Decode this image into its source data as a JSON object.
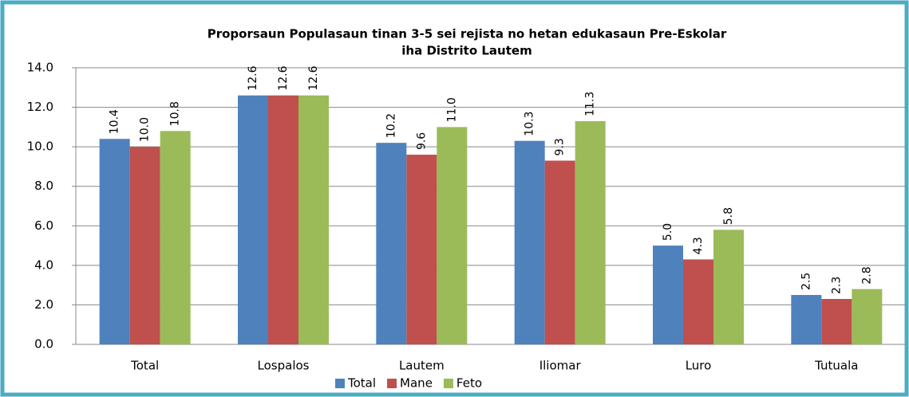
{
  "chart_data": {
    "type": "bar",
    "title": [
      "Proporsaun Populasaun  tinan 3-5 sei rejista no hetan edukasaun  Pre-Eskolar",
      "iha Distrito Lautem"
    ],
    "categories": [
      "Total",
      "Lospalos",
      "Lautem",
      "Iliomar",
      "Luro",
      "Tutuala"
    ],
    "series": [
      {
        "name": "Total",
        "color": "#4f81bd",
        "values": [
          10.4,
          12.6,
          10.2,
          10.3,
          5.0,
          2.5
        ],
        "value_labels": [
          "10.4",
          "12.6",
          "10.2",
          "10.3",
          "5.0",
          "2.5"
        ]
      },
      {
        "name": "Mane",
        "color": "#c0504d",
        "values": [
          10.0,
          12.6,
          9.6,
          9.3,
          4.3,
          2.3
        ],
        "value_labels": [
          "10.0",
          "12.6",
          "9.6",
          "9.3",
          "4.3",
          "2.3"
        ]
      },
      {
        "name": "Feto",
        "color": "#9bbb59",
        "values": [
          10.8,
          12.6,
          11.0,
          11.3,
          5.8,
          2.8
        ],
        "value_labels": [
          "10.8",
          "12.6",
          "11.0",
          "11.3",
          "5.8",
          "2.8"
        ]
      }
    ],
    "ylim": [
      0,
      14
    ],
    "yticks": [
      {
        "value": 0,
        "label": "0.0"
      },
      {
        "value": 2,
        "label": "2.0"
      },
      {
        "value": 4,
        "label": "4.0"
      },
      {
        "value": 6,
        "label": "6.0"
      },
      {
        "value": 8,
        "label": "8.0"
      },
      {
        "value": 10,
        "label": "10.0"
      },
      {
        "value": 12,
        "label": "12.0"
      },
      {
        "value": 14,
        "label": "14.0"
      }
    ],
    "grid": true,
    "legend": "bottom"
  }
}
